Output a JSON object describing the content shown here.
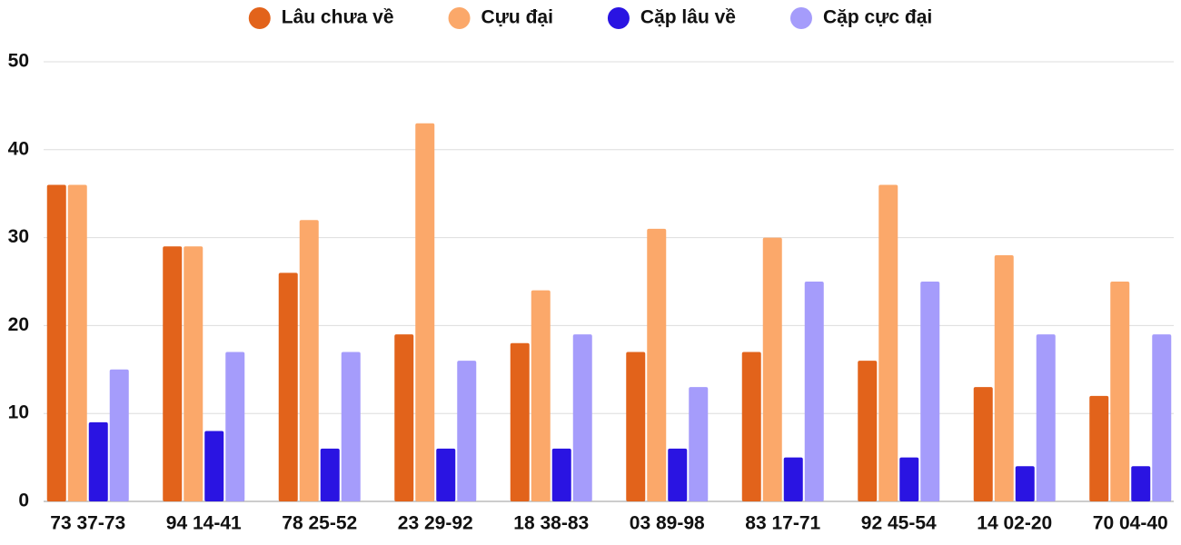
{
  "chart_data": {
    "type": "bar",
    "categories": [
      "73 37-73",
      "94 14-41",
      "78 25-52",
      "23 29-92",
      "18 38-83",
      "03 89-98",
      "83 17-71",
      "92 45-54",
      "14 02-20",
      "70 04-40"
    ],
    "series": [
      {
        "name": "Lâu chưa về",
        "color": "#e2631b",
        "values": [
          36,
          29,
          26,
          19,
          18,
          17,
          17,
          16,
          13,
          12
        ]
      },
      {
        "name": "Cựu đại",
        "color": "#fba86a",
        "values": [
          36,
          29,
          32,
          43,
          24,
          31,
          30,
          36,
          28,
          25
        ]
      },
      {
        "name": "Cặp lâu về",
        "color": "#2a14e2",
        "values": [
          9,
          8,
          6,
          6,
          6,
          6,
          5,
          5,
          4,
          4
        ]
      },
      {
        "name": "Cặp cực đại",
        "color": "#a59cfb",
        "values": [
          15,
          17,
          17,
          16,
          19,
          13,
          25,
          25,
          19,
          19
        ]
      }
    ],
    "ylim": [
      0,
      50
    ],
    "yticks": [
      0,
      10,
      20,
      30,
      40,
      50
    ],
    "grid": true,
    "legend": "top"
  }
}
